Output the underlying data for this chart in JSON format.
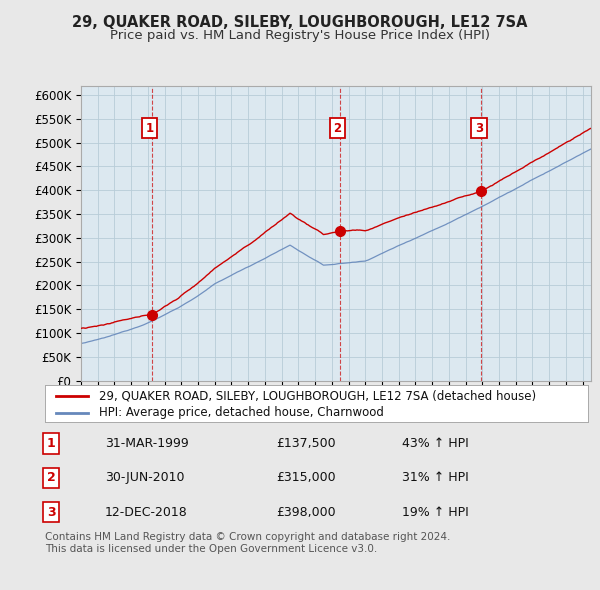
{
  "title": "29, QUAKER ROAD, SILEBY, LOUGHBOROUGH, LE12 7SA",
  "subtitle": "Price paid vs. HM Land Registry's House Price Index (HPI)",
  "ylabel_ticks": [
    "£0",
    "£50K",
    "£100K",
    "£150K",
    "£200K",
    "£250K",
    "£300K",
    "£350K",
    "£400K",
    "£450K",
    "£500K",
    "£550K",
    "£600K"
  ],
  "ytick_values": [
    0,
    50000,
    100000,
    150000,
    200000,
    250000,
    300000,
    350000,
    400000,
    450000,
    500000,
    550000,
    600000
  ],
  "ylim": [
    0,
    620000
  ],
  "xlim_start": 1995.0,
  "xlim_end": 2025.5,
  "sale_dates": [
    1999.25,
    2010.5,
    2018.95
  ],
  "sale_prices": [
    137500,
    315000,
    398000
  ],
  "sale_labels": [
    "1",
    "2",
    "3"
  ],
  "legend_line1": "29, QUAKER ROAD, SILEBY, LOUGHBOROUGH, LE12 7SA (detached house)",
  "legend_line2": "HPI: Average price, detached house, Charnwood",
  "table_data": [
    {
      "num": "1",
      "date": "31-MAR-1999",
      "price": "£137,500",
      "pct": "43% ↑ HPI"
    },
    {
      "num": "2",
      "date": "30-JUN-2010",
      "price": "£315,000",
      "pct": "31% ↑ HPI"
    },
    {
      "num": "3",
      "date": "12-DEC-2018",
      "price": "£398,000",
      "pct": "19% ↑ HPI"
    }
  ],
  "footer": "Contains HM Land Registry data © Crown copyright and database right 2024.\nThis data is licensed under the Open Government Licence v3.0.",
  "red_color": "#cc0000",
  "blue_color": "#6688bb",
  "plot_bg": "#dce8f0",
  "bg_color": "#e8e8e8",
  "grid_color": "#b8ccd8",
  "title_fontsize": 10.5,
  "subtitle_fontsize": 9.5,
  "tick_fontsize": 8.5,
  "legend_fontsize": 8.5,
  "table_fontsize": 9,
  "footer_fontsize": 7.5
}
